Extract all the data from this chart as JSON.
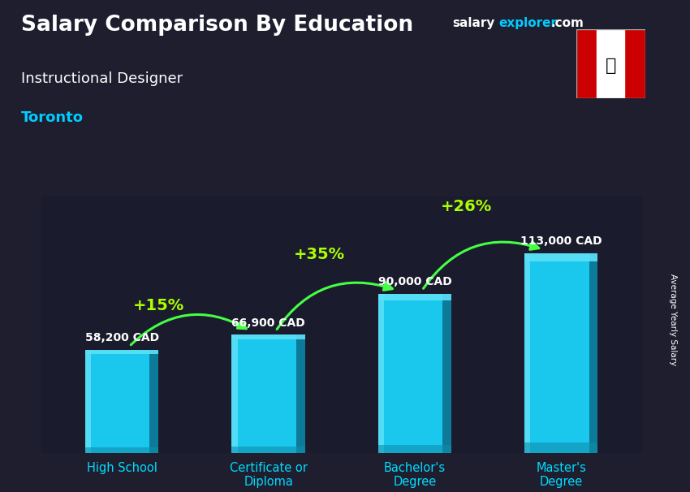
{
  "title": "Salary Comparison By Education",
  "subtitle": "Instructional Designer",
  "city": "Toronto",
  "ylabel": "Average Yearly Salary",
  "categories": [
    "High School",
    "Certificate or\nDiploma",
    "Bachelor's\nDegree",
    "Master's\nDegree"
  ],
  "values": [
    58200,
    66900,
    90000,
    113000
  ],
  "labels": [
    "58,200 CAD",
    "66,900 CAD",
    "90,000 CAD",
    "113,000 CAD"
  ],
  "pct_labels": [
    "+15%",
    "+35%",
    "+26%"
  ],
  "pct_positions": [
    [
      0,
      1,
      "+15%",
      -0.25,
      12000
    ],
    [
      1,
      2,
      "+35%",
      -0.15,
      18000
    ],
    [
      2,
      3,
      "+26%",
      -0.15,
      22000
    ]
  ],
  "bar_color_main": "#1ac8ed",
  "bar_color_light": "#5de0f8",
  "bar_color_dark": "#0e8fb0",
  "bar_color_right": "#0d7a99",
  "bg_color": "#1e1e2e",
  "title_color": "#ffffff",
  "subtitle_color": "#ffffff",
  "city_color": "#00ccff",
  "label_color": "#ffffff",
  "pct_color": "#aaff00",
  "arrow_color": "#44ff44",
  "site_salary_color": "#ffffff",
  "site_explorer_color": "#00ccff",
  "ylabel_color": "#ffffff",
  "xtick_color": "#00ddff",
  "ylim": [
    0,
    145000
  ],
  "bar_width": 0.5,
  "fig_width": 8.5,
  "fig_height": 6.06,
  "dpi": 100
}
